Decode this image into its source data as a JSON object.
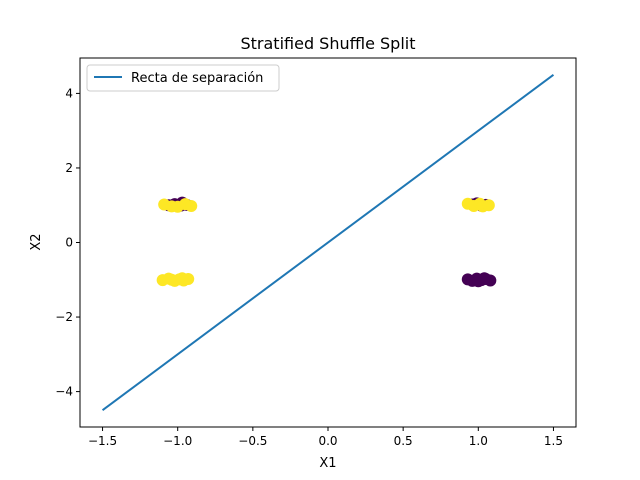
{
  "chart_data": {
    "type": "scatter",
    "title": "Stratified Shuffle Split",
    "xlabel": "X1",
    "ylabel": "X2",
    "xlim": [
      -1.65,
      1.65
    ],
    "ylim": [
      -4.95,
      4.95
    ],
    "xticks": [
      -1.5,
      -1.0,
      -0.5,
      0.0,
      0.5,
      1.0,
      1.5
    ],
    "xtick_labels": [
      "−1.5",
      "−1.0",
      "−0.5",
      "0.0",
      "0.5",
      "1.0",
      "1.5"
    ],
    "yticks": [
      -4,
      -2,
      0,
      2,
      4
    ],
    "ytick_labels": [
      "−4",
      "−2",
      "0",
      "2",
      "4"
    ],
    "grid": false,
    "legend": {
      "position": "top-left",
      "entries": [
        "Recta de separación"
      ]
    },
    "line_series": [
      {
        "name": "Recta de separación",
        "color": "#1f77b4",
        "x": [
          -1.5,
          1.5
        ],
        "y": [
          -4.5,
          4.5
        ]
      }
    ],
    "scatter_points": [
      {
        "x": -1.06,
        "y": 1.0,
        "cls": 0
      },
      {
        "x": -1.02,
        "y": 1.03,
        "cls": 0
      },
      {
        "x": -0.98,
        "y": 0.99,
        "cls": 0
      },
      {
        "x": -0.94,
        "y": 1.01,
        "cls": 0
      },
      {
        "x": -0.97,
        "y": 1.07,
        "cls": 0
      },
      {
        "x": -1.09,
        "y": 1.02,
        "cls": 1
      },
      {
        "x": -1.04,
        "y": 0.97,
        "cls": 1
      },
      {
        "x": -1.0,
        "y": 0.96,
        "cls": 1
      },
      {
        "x": -0.95,
        "y": 1.03,
        "cls": 1
      },
      {
        "x": -0.91,
        "y": 0.98,
        "cls": 1
      },
      {
        "x": -1.1,
        "y": -1.01,
        "cls": 1
      },
      {
        "x": -1.06,
        "y": -0.97,
        "cls": 1
      },
      {
        "x": -1.02,
        "y": -1.03,
        "cls": 1
      },
      {
        "x": -0.99,
        "y": -0.99,
        "cls": 1
      },
      {
        "x": -0.96,
        "y": -1.02,
        "cls": 1
      },
      {
        "x": -0.93,
        "y": -0.98,
        "cls": 1
      },
      {
        "x": -1.04,
        "y": -1.0,
        "cls": 1
      },
      {
        "x": -0.97,
        "y": -0.96,
        "cls": 1
      },
      {
        "x": 0.96,
        "y": 1.02,
        "cls": 0
      },
      {
        "x": 1.02,
        "y": 0.99,
        "cls": 0
      },
      {
        "x": 1.05,
        "y": 1.01,
        "cls": 0
      },
      {
        "x": 0.99,
        "y": 1.05,
        "cls": 0
      },
      {
        "x": 0.93,
        "y": 1.04,
        "cls": 1
      },
      {
        "x": 0.97,
        "y": 0.98,
        "cls": 1
      },
      {
        "x": 1.01,
        "y": 1.04,
        "cls": 1
      },
      {
        "x": 1.03,
        "y": 0.97,
        "cls": 1
      },
      {
        "x": 1.07,
        "y": 1.0,
        "cls": 1
      },
      {
        "x": 0.93,
        "y": -0.99,
        "cls": 0
      },
      {
        "x": 0.96,
        "y": -1.03,
        "cls": 0
      },
      {
        "x": 0.99,
        "y": -0.97,
        "cls": 0
      },
      {
        "x": 1.02,
        "y": -1.01,
        "cls": 0
      },
      {
        "x": 1.05,
        "y": -0.98,
        "cls": 0
      },
      {
        "x": 1.08,
        "y": -1.02,
        "cls": 0
      },
      {
        "x": 1.0,
        "y": -1.04,
        "cls": 0
      },
      {
        "x": 1.04,
        "y": -0.96,
        "cls": 0
      }
    ],
    "class_colors": [
      "#440154",
      "#fde725"
    ]
  }
}
